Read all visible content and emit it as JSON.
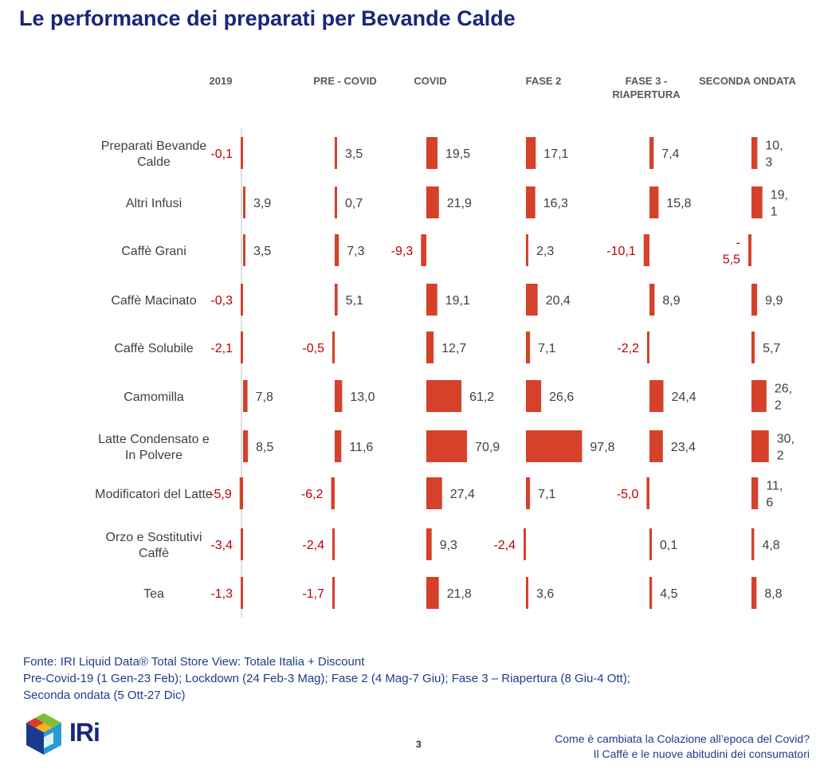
{
  "title": "Le performance dei preparati per Bevande Calde",
  "chart_data": {
    "type": "bar",
    "orientation": "horizontal",
    "layout": "small-multiples",
    "categories": [
      [
        "Preparati Bevande",
        "Calde"
      ],
      [
        "Altri Infusi"
      ],
      [
        "Caffè Grani"
      ],
      [
        "Caffè Macinato"
      ],
      [
        "Caffè Solubile"
      ],
      [
        "Camomilla"
      ],
      [
        "Latte Condensato e",
        "In Polvere"
      ],
      [
        "Modificatori del Latte"
      ],
      [
        "Orzo e Sostitutivi",
        "Caffè"
      ],
      [
        "Tea"
      ]
    ],
    "series": [
      {
        "name": "2019",
        "header": [
          "2019"
        ],
        "values": [
          -0.1,
          3.9,
          3.5,
          -0.3,
          -2.1,
          7.8,
          8.5,
          -5.9,
          -3.4,
          -1.3
        ],
        "labels": [
          [
            "-0,1"
          ],
          [
            "3,9"
          ],
          [
            "3,5"
          ],
          [
            "-0,3"
          ],
          [
            "-2,1"
          ],
          [
            "7,8"
          ],
          [
            "8,5"
          ],
          [
            "-5,9"
          ],
          [
            "-3,4"
          ],
          [
            "-1,3"
          ]
        ]
      },
      {
        "name": "PRE - COVID",
        "header": [
          "PRE - COVID"
        ],
        "values": [
          3.5,
          0.7,
          7.3,
          5.1,
          -0.5,
          13.0,
          11.6,
          -6.2,
          -2.4,
          -1.7
        ],
        "labels": [
          [
            "3,5"
          ],
          [
            "0,7"
          ],
          [
            "7,3"
          ],
          [
            "5,1"
          ],
          [
            "-0,5"
          ],
          [
            "13,0"
          ],
          [
            "11,6"
          ],
          [
            "-6,2"
          ],
          [
            "-2,4"
          ],
          [
            "-1,7"
          ]
        ]
      },
      {
        "name": "COVID",
        "header": [
          "COVID"
        ],
        "values": [
          19.5,
          21.9,
          -9.3,
          19.1,
          12.7,
          61.2,
          70.9,
          27.4,
          9.3,
          21.8
        ],
        "labels": [
          [
            "19,5"
          ],
          [
            "21,9"
          ],
          [
            "-9,3"
          ],
          [
            "19,1"
          ],
          [
            "12,7"
          ],
          [
            "61,2"
          ],
          [
            "70,9"
          ],
          [
            "27,4"
          ],
          [
            "9,3"
          ],
          [
            "21,8"
          ]
        ]
      },
      {
        "name": "FASE 2",
        "header": [
          "FASE 2"
        ],
        "values": [
          17.1,
          16.3,
          2.3,
          20.4,
          7.1,
          26.6,
          97.8,
          7.1,
          -2.4,
          3.6
        ],
        "labels": [
          [
            "17,1"
          ],
          [
            "16,3"
          ],
          [
            "2,3"
          ],
          [
            "20,4"
          ],
          [
            "7,1"
          ],
          [
            "26,6"
          ],
          [
            "97,8"
          ],
          [
            "7,1"
          ],
          [
            "-2,4"
          ],
          [
            "3,6"
          ]
        ]
      },
      {
        "name": "FASE 3 - RIAPERTURA",
        "header": [
          "FASE 3 -",
          "RIAPERTURA"
        ],
        "values": [
          7.4,
          15.8,
          -10.1,
          8.9,
          -2.2,
          24.4,
          23.4,
          -5.0,
          0.1,
          4.5
        ],
        "labels": [
          [
            "7,4"
          ],
          [
            "15,8"
          ],
          [
            "-10,1"
          ],
          [
            "8,9"
          ],
          [
            "-2,2"
          ],
          [
            "24,4"
          ],
          [
            "23,4"
          ],
          [
            "-5,0"
          ],
          [
            "0,1"
          ],
          [
            "4,5"
          ]
        ]
      },
      {
        "name": "SECONDA ONDATA",
        "header": [
          "SECONDA ONDATA"
        ],
        "values": [
          10.3,
          19.1,
          -5.5,
          9.9,
          5.7,
          26.2,
          30.2,
          11.6,
          4.8,
          8.8
        ],
        "labels": [
          [
            "10,",
            "3"
          ],
          [
            "19,",
            "1"
          ],
          [
            "-",
            "5,5"
          ],
          [
            "9,9"
          ],
          [
            "5,7"
          ],
          [
            "26,",
            "2"
          ],
          [
            "30,",
            "2"
          ],
          [
            "11,",
            "6"
          ],
          [
            "4,8"
          ],
          [
            "8,8"
          ]
        ]
      }
    ],
    "colors": {
      "bar": "#d5412a",
      "negative_label": "#c00000",
      "positive_label": "#404040",
      "header": "#595959",
      "axis": "#bfbfbf"
    },
    "grid": false,
    "legend": "none"
  },
  "footer": {
    "source_lines": [
      "Fonte: IRI Liquid Data® Total Store View: Totale Italia + Discount",
      "Pre-Covid-19 (1 Gen-23 Feb); Lockdown (24 Feb-3 Mag); Fase 2 (4 Mag-7 Giu); Fase 3 – Riapertura (8 Giu-4 Ott);",
      "Seconda ondata (5 Ott-27 Dic)"
    ],
    "page_number": "3",
    "tagline_lines": [
      "Come è cambiata la Colazione all’epoca del Covid?",
      "Il Caffè e le nuove abitudini dei consumatori"
    ],
    "logo_text": "IRi"
  }
}
